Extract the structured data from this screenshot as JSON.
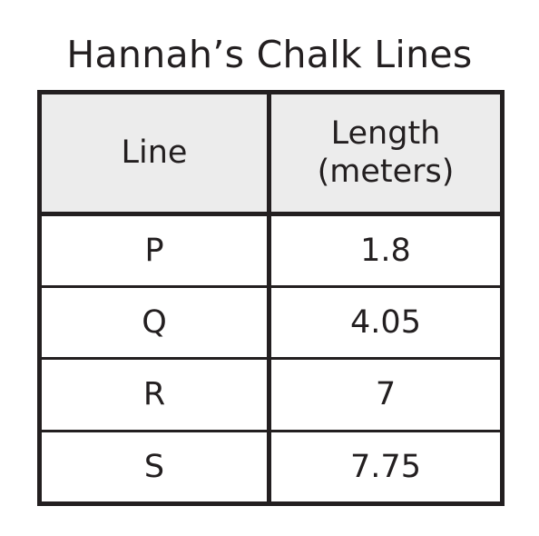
{
  "title": "Hannah’s Chalk Lines",
  "table": {
    "headers": {
      "line": "Line",
      "length_line1": "Length",
      "length_line2": "(meters)"
    },
    "rows": [
      {
        "line": "P",
        "length": "1.8"
      },
      {
        "line": "Q",
        "length": "4.05"
      },
      {
        "line": "R",
        "length": "7"
      },
      {
        "line": "S",
        "length": "7.75"
      }
    ]
  }
}
